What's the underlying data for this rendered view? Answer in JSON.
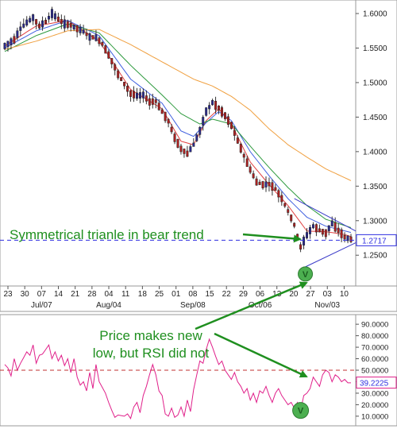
{
  "chart_data": [
    {
      "type": "candlestick",
      "panel": "price",
      "ylim": [
        1.21,
        1.615
      ],
      "y_ticks": [
        1.25,
        1.3,
        1.35,
        1.4,
        1.45,
        1.5,
        1.55,
        1.6
      ],
      "y_tick_labels": [
        "1.2500",
        "1.3000",
        "1.3500",
        "1.4000",
        "1.4500",
        "1.5000",
        "1.5500",
        "1.6000"
      ],
      "x_day_labels": [
        "23",
        "30",
        "07",
        "14",
        "21",
        "28",
        "04",
        "11",
        "18",
        "25",
        "01",
        "08",
        "15",
        "22",
        "29",
        "06",
        "13",
        "20",
        "27",
        "03",
        "10"
      ],
      "x_month_labels": [
        {
          "label": "Jul/07",
          "at": "07"
        },
        {
          "label": "Aug/04",
          "at": "04"
        },
        {
          "label": "Sep/08",
          "at": "08"
        },
        {
          "label": "Oct/06",
          "at": "06"
        },
        {
          "label": "Nov/03",
          "at": "03"
        }
      ],
      "price_path": [
        [
          0,
          1.553
        ],
        [
          3,
          1.562
        ],
        [
          5,
          1.578
        ],
        [
          7,
          1.587
        ],
        [
          9,
          1.594
        ],
        [
          11,
          1.582
        ],
        [
          13,
          1.588
        ],
        [
          15,
          1.6
        ],
        [
          17,
          1.592
        ],
        [
          19,
          1.585
        ],
        [
          21,
          1.583
        ],
        [
          23,
          1.578
        ],
        [
          25,
          1.574
        ],
        [
          27,
          1.566
        ],
        [
          29,
          1.565
        ],
        [
          31,
          1.556
        ],
        [
          33,
          1.54
        ],
        [
          35,
          1.522
        ],
        [
          36,
          1.512
        ],
        [
          38,
          1.498
        ],
        [
          40,
          1.484
        ],
        [
          42,
          1.481
        ],
        [
          44,
          1.482
        ],
        [
          46,
          1.472
        ],
        [
          48,
          1.473
        ],
        [
          50,
          1.458
        ],
        [
          52,
          1.444
        ],
        [
          54,
          1.42
        ],
        [
          56,
          1.404
        ],
        [
          58,
          1.397
        ],
        [
          60,
          1.41
        ],
        [
          62,
          1.43
        ],
        [
          64,
          1.458
        ],
        [
          66,
          1.471
        ],
        [
          68,
          1.463
        ],
        [
          70,
          1.452
        ],
        [
          72,
          1.438
        ],
        [
          74,
          1.416
        ],
        [
          76,
          1.394
        ],
        [
          78,
          1.374
        ],
        [
          80,
          1.356
        ],
        [
          82,
          1.352
        ],
        [
          84,
          1.353
        ],
        [
          86,
          1.346
        ],
        [
          88,
          1.332
        ],
        [
          90,
          1.314
        ],
        [
          92,
          1.294
        ],
        [
          94,
          1.262
        ],
        [
          96,
          1.279
        ],
        [
          98,
          1.292
        ],
        [
          100,
          1.286
        ],
        [
          102,
          1.282
        ],
        [
          104,
          1.296
        ],
        [
          106,
          1.286
        ],
        [
          108,
          1.276
        ],
        [
          110,
          1.273
        ]
      ],
      "moving_averages": [
        {
          "color": "#e04040",
          "values": [
            [
              0,
              1.553
            ],
            [
              10,
              1.582
            ],
            [
              20,
              1.59
            ],
            [
              30,
              1.56
            ],
            [
              40,
              1.49
            ],
            [
              50,
              1.462
            ],
            [
              56,
              1.415
            ],
            [
              60,
              1.41
            ],
            [
              64,
              1.445
            ],
            [
              68,
              1.462
            ],
            [
              72,
              1.44
            ],
            [
              78,
              1.385
            ],
            [
              84,
              1.352
            ],
            [
              90,
              1.322
            ],
            [
              96,
              1.285
            ],
            [
              102,
              1.284
            ],
            [
              108,
              1.28
            ],
            [
              110,
              1.277
            ]
          ]
        },
        {
          "color": "#4060e0",
          "values": [
            [
              0,
              1.55
            ],
            [
              10,
              1.575
            ],
            [
              20,
              1.59
            ],
            [
              30,
              1.568
            ],
            [
              40,
              1.505
            ],
            [
              50,
              1.47
            ],
            [
              56,
              1.43
            ],
            [
              60,
              1.422
            ],
            [
              64,
              1.442
            ],
            [
              68,
              1.458
            ],
            [
              72,
              1.445
            ],
            [
              78,
              1.4
            ],
            [
              84,
              1.365
            ],
            [
              90,
              1.332
            ],
            [
              96,
              1.305
            ],
            [
              102,
              1.292
            ],
            [
              110,
              1.283
            ]
          ]
        },
        {
          "color": "#2e9a3e",
          "values": [
            [
              0,
              1.545
            ],
            [
              10,
              1.568
            ],
            [
              20,
              1.585
            ],
            [
              30,
              1.572
            ],
            [
              40,
              1.525
            ],
            [
              50,
              1.482
            ],
            [
              56,
              1.455
            ],
            [
              62,
              1.44
            ],
            [
              66,
              1.447
            ],
            [
              72,
              1.44
            ],
            [
              78,
              1.408
            ],
            [
              84,
              1.377
            ],
            [
              90,
              1.348
            ],
            [
              96,
              1.322
            ],
            [
              102,
              1.302
            ],
            [
              110,
              1.29
            ]
          ]
        },
        {
          "color": "#f0a040",
          "values": [
            [
              0,
              1.548
            ],
            [
              10,
              1.56
            ],
            [
              20,
              1.575
            ],
            [
              30,
              1.577
            ],
            [
              40,
              1.555
            ],
            [
              50,
              1.53
            ],
            [
              60,
              1.505
            ],
            [
              66,
              1.495
            ],
            [
              72,
              1.48
            ],
            [
              78,
              1.46
            ],
            [
              84,
              1.433
            ],
            [
              90,
              1.41
            ],
            [
              96,
              1.392
            ],
            [
              102,
              1.375
            ],
            [
              110,
              1.358
            ]
          ]
        }
      ],
      "support_price": 1.2717,
      "support_label": "1.2717",
      "triangle": {
        "apex_index": 110,
        "upper": [
          [
            92,
            1.332
          ],
          [
            110,
            1.285
          ]
        ],
        "lower": [
          [
            95,
            1.232
          ],
          [
            110,
            1.268
          ]
        ]
      }
    },
    {
      "type": "line",
      "panel": "rsi",
      "ylim": [
        3,
        97
      ],
      "y_ticks": [
        10,
        20,
        30,
        40,
        50,
        60,
        70,
        80,
        90
      ],
      "y_tick_labels": [
        "10.0000",
        "20.0000",
        "30.0000",
        "40.0000",
        "50.0000",
        "60.0000",
        "70.0000",
        "80.0000",
        "90.0000"
      ],
      "current_value": 39.2225,
      "current_label": "39.2225",
      "overbought_line": 50,
      "values": [
        [
          0,
          55
        ],
        [
          1,
          52
        ],
        [
          2,
          45
        ],
        [
          3,
          60
        ],
        [
          4,
          50
        ],
        [
          5,
          56
        ],
        [
          7,
          66
        ],
        [
          8,
          63
        ],
        [
          9,
          72
        ],
        [
          10,
          56
        ],
        [
          11,
          63
        ],
        [
          12,
          64
        ],
        [
          14,
          72
        ],
        [
          15,
          60
        ],
        [
          16,
          66
        ],
        [
          17,
          58
        ],
        [
          18,
          63
        ],
        [
          19,
          54
        ],
        [
          20,
          60
        ],
        [
          21,
          48
        ],
        [
          22,
          60
        ],
        [
          23,
          44
        ],
        [
          24,
          37
        ],
        [
          25,
          40
        ],
        [
          26,
          32
        ],
        [
          27,
          48
        ],
        [
          28,
          34
        ],
        [
          29,
          55
        ],
        [
          30,
          40
        ],
        [
          31,
          35
        ],
        [
          32,
          30
        ],
        [
          33,
          22
        ],
        [
          34,
          15
        ],
        [
          35,
          9
        ],
        [
          36,
          11
        ],
        [
          38,
          10
        ],
        [
          39,
          12
        ],
        [
          40,
          8
        ],
        [
          41,
          18
        ],
        [
          42,
          22
        ],
        [
          43,
          13
        ],
        [
          44,
          28
        ],
        [
          45,
          36
        ],
        [
          46,
          46
        ],
        [
          47,
          55
        ],
        [
          48,
          46
        ],
        [
          49,
          32
        ],
        [
          50,
          28
        ],
        [
          51,
          12
        ],
        [
          52,
          10
        ],
        [
          53,
          17
        ],
        [
          54,
          9
        ],
        [
          55,
          11
        ],
        [
          56,
          18
        ],
        [
          57,
          10
        ],
        [
          58,
          24
        ],
        [
          59,
          14
        ],
        [
          60,
          33
        ],
        [
          61,
          46
        ],
        [
          62,
          58
        ],
        [
          63,
          56
        ],
        [
          64,
          68
        ],
        [
          65,
          77
        ],
        [
          66,
          70
        ],
        [
          67,
          62
        ],
        [
          68,
          55
        ],
        [
          69,
          58
        ],
        [
          70,
          50
        ],
        [
          71,
          46
        ],
        [
          72,
          42
        ],
        [
          73,
          48
        ],
        [
          74,
          40
        ],
        [
          75,
          36
        ],
        [
          76,
          30
        ],
        [
          77,
          34
        ],
        [
          78,
          24
        ],
        [
          79,
          30
        ],
        [
          80,
          22
        ],
        [
          81,
          32
        ],
        [
          82,
          30
        ],
        [
          83,
          36
        ],
        [
          84,
          28
        ],
        [
          85,
          22
        ],
        [
          86,
          30
        ],
        [
          87,
          34
        ],
        [
          88,
          28
        ],
        [
          89,
          24
        ],
        [
          90,
          20
        ],
        [
          91,
          22
        ],
        [
          92,
          17
        ],
        [
          93,
          22
        ],
        [
          94,
          15
        ],
        [
          95,
          28
        ],
        [
          96,
          30
        ],
        [
          97,
          34
        ],
        [
          98,
          44
        ],
        [
          99,
          40
        ],
        [
          100,
          36
        ],
        [
          101,
          46
        ],
        [
          102,
          50
        ],
        [
          103,
          48
        ],
        [
          104,
          40
        ],
        [
          105,
          46
        ],
        [
          106,
          44
        ],
        [
          107,
          40
        ],
        [
          108,
          42
        ],
        [
          109,
          39
        ],
        [
          110,
          39
        ]
      ]
    }
  ],
  "annotations": {
    "triangle_text": "Symmetrical trianle in bear trend",
    "rsi_text_line1": "Price makes new",
    "rsi_text_line2": "low, but RSI did not"
  },
  "colors": {
    "bull_candle": "#2a2a90",
    "bear_candle": "#b02020",
    "support_line": "#2e2ee0",
    "rsi_line": "#e0208a",
    "rsi_level": "#c03030",
    "annotation": "#1f8f1f",
    "marker": "#4caf50"
  }
}
